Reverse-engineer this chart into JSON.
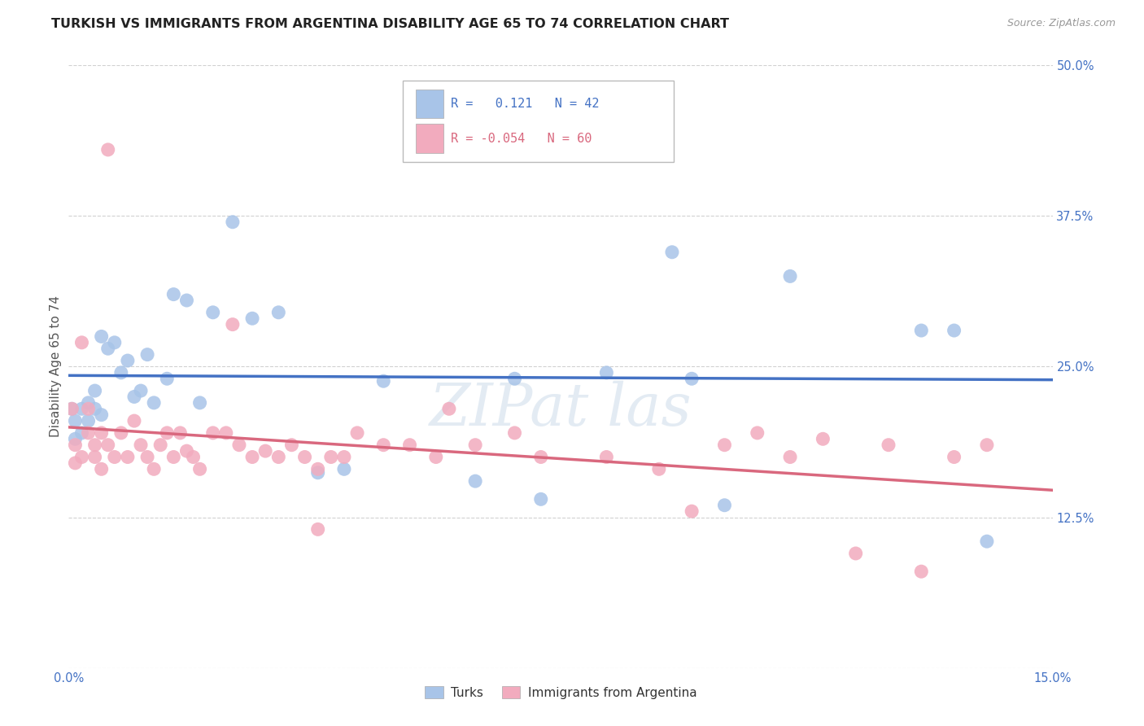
{
  "title": "TURKISH VS IMMIGRANTS FROM ARGENTINA DISABILITY AGE 65 TO 74 CORRELATION CHART",
  "source": "Source: ZipAtlas.com",
  "ylabel_label": "Disability Age 65 to 74",
  "xlim": [
    0.0,
    0.15
  ],
  "ylim": [
    0.0,
    0.5
  ],
  "ytick_labels": [
    "",
    "12.5%",
    "25.0%",
    "37.5%",
    "50.0%"
  ],
  "turks_R": 0.121,
  "turks_N": 42,
  "argentina_R": -0.054,
  "argentina_N": 60,
  "turks_color": "#a8c4e8",
  "argentina_color": "#f2abbe",
  "turks_line_color": "#4472c4",
  "argentina_line_color": "#d9687e",
  "background_color": "#ffffff",
  "grid_color": "#cccccc",
  "title_fontsize": 11.5,
  "axis_label_fontsize": 11,
  "tick_fontsize": 10.5,
  "turks_x": [
    0.0005,
    0.001,
    0.001,
    0.002,
    0.002,
    0.003,
    0.003,
    0.004,
    0.004,
    0.005,
    0.005,
    0.006,
    0.007,
    0.008,
    0.009,
    0.01,
    0.011,
    0.012,
    0.013,
    0.015,
    0.016,
    0.018,
    0.02,
    0.022,
    0.025,
    0.028,
    0.032,
    0.038,
    0.042,
    0.048,
    0.052,
    0.062,
    0.068,
    0.072,
    0.082,
    0.092,
    0.095,
    0.1,
    0.11,
    0.13,
    0.135,
    0.14
  ],
  "turks_y": [
    0.215,
    0.19,
    0.205,
    0.215,
    0.195,
    0.22,
    0.205,
    0.215,
    0.23,
    0.21,
    0.275,
    0.265,
    0.27,
    0.245,
    0.255,
    0.225,
    0.23,
    0.26,
    0.22,
    0.24,
    0.31,
    0.305,
    0.22,
    0.295,
    0.37,
    0.29,
    0.295,
    0.162,
    0.165,
    0.238,
    0.43,
    0.155,
    0.24,
    0.14,
    0.245,
    0.345,
    0.24,
    0.135,
    0.325,
    0.28,
    0.28,
    0.105
  ],
  "argentina_x": [
    0.0005,
    0.001,
    0.001,
    0.002,
    0.002,
    0.003,
    0.003,
    0.004,
    0.004,
    0.005,
    0.005,
    0.006,
    0.007,
    0.008,
    0.009,
    0.01,
    0.011,
    0.012,
    0.013,
    0.014,
    0.015,
    0.016,
    0.017,
    0.018,
    0.019,
    0.02,
    0.022,
    0.024,
    0.026,
    0.028,
    0.03,
    0.032,
    0.034,
    0.036,
    0.038,
    0.04,
    0.042,
    0.044,
    0.048,
    0.052,
    0.056,
    0.058,
    0.062,
    0.068,
    0.072,
    0.082,
    0.09,
    0.095,
    0.1,
    0.105,
    0.11,
    0.115,
    0.12,
    0.125,
    0.13,
    0.135,
    0.14,
    0.006,
    0.025,
    0.038
  ],
  "argentina_y": [
    0.215,
    0.185,
    0.17,
    0.175,
    0.27,
    0.195,
    0.215,
    0.175,
    0.185,
    0.195,
    0.165,
    0.185,
    0.175,
    0.195,
    0.175,
    0.205,
    0.185,
    0.175,
    0.165,
    0.185,
    0.195,
    0.175,
    0.195,
    0.18,
    0.175,
    0.165,
    0.195,
    0.195,
    0.185,
    0.175,
    0.18,
    0.175,
    0.185,
    0.175,
    0.165,
    0.175,
    0.175,
    0.195,
    0.185,
    0.185,
    0.175,
    0.215,
    0.185,
    0.195,
    0.175,
    0.175,
    0.165,
    0.13,
    0.185,
    0.195,
    0.175,
    0.19,
    0.095,
    0.185,
    0.08,
    0.175,
    0.185,
    0.43,
    0.285,
    0.115
  ],
  "watermark_text": "ZIPat las"
}
